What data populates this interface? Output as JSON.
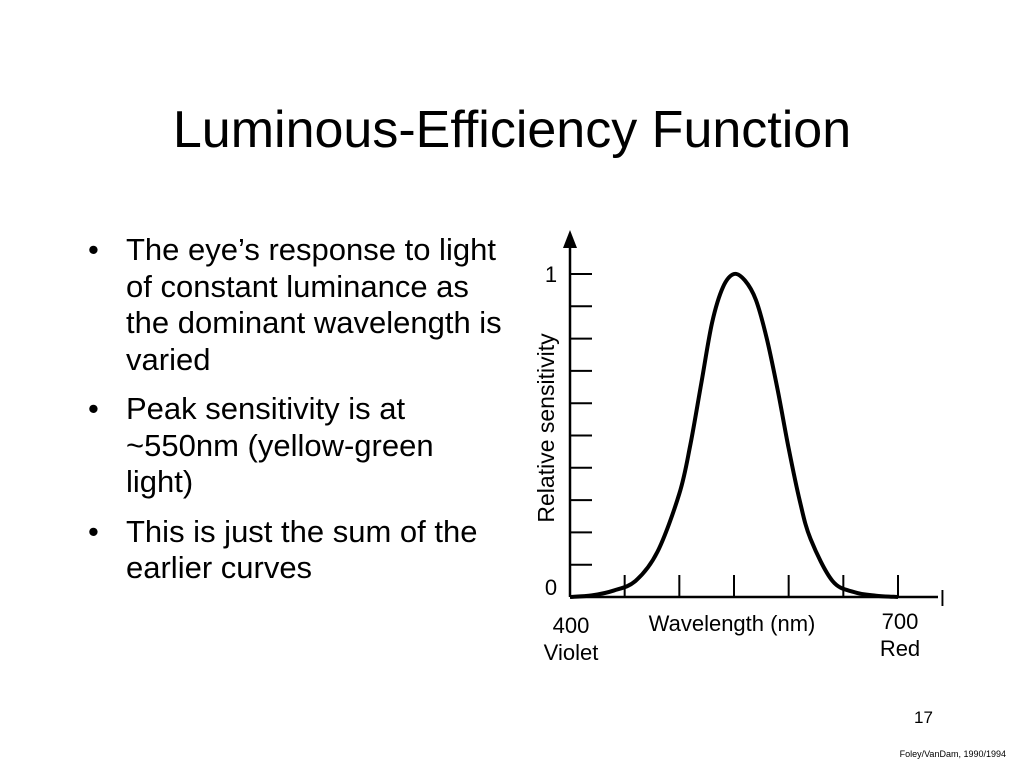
{
  "slide": {
    "title": "Luminous-Efficiency Function",
    "bullets": [
      "The eye’s response to light of constant luminance as the dominant wavelength is varied",
      "Peak sensitivity is at ~550nm (yellow-green light)",
      "This is just the sum of the earlier curves"
    ],
    "page_number": "17",
    "credit": "Foley/VanDam, 1990/1994"
  },
  "chart_data": {
    "type": "line",
    "title": "",
    "xlabel": "Wavelength (nm)",
    "ylabel": "Relative sensitivity",
    "x_axis_end_label": "l",
    "x_min_label_top": "400",
    "x_min_label_bottom": "Violet",
    "x_max_label_top": "700",
    "x_max_label_bottom": "Red",
    "y_tick_labels": {
      "min": "0",
      "max": "1"
    },
    "xlim": [
      400,
      700
    ],
    "ylim": [
      0,
      1
    ],
    "x_tick_count": 6,
    "y_tick_count": 10,
    "grid": false,
    "curve_color": "#000000",
    "series": [
      {
        "x": [
          400,
          420,
          440,
          460,
          480,
          500,
          510,
          520,
          530,
          540,
          550,
          560,
          570,
          580,
          590,
          600,
          610,
          620,
          640,
          660,
          680,
          700
        ],
        "values": [
          0.0,
          0.005,
          0.02,
          0.05,
          0.14,
          0.32,
          0.47,
          0.66,
          0.85,
          0.96,
          1.0,
          0.98,
          0.92,
          0.8,
          0.64,
          0.46,
          0.3,
          0.18,
          0.05,
          0.015,
          0.004,
          0.0
        ]
      }
    ]
  }
}
